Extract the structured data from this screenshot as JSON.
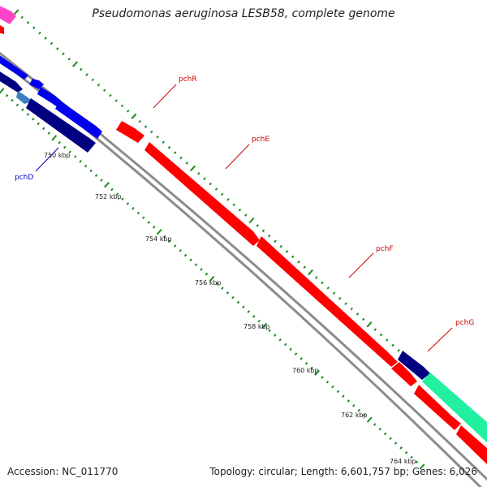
{
  "title": "Pseudomonas aeruginosa LESB58, complete genome",
  "accession": "Accession: NC_011770",
  "summary": "Topology: circular; Length: 6,601,757 bp; Genes: 6,026",
  "colors": {
    "backbone": "#8c8c8c",
    "tick": "#1a8a1a",
    "forward_gene": "#ff0000",
    "reverse_gene": "#0000ee",
    "dark_gene": "#000080",
    "light_gene": "#20f0a0",
    "pink_gene": "#ff44cc",
    "forward_label": "#cc0000",
    "reverse_label": "#0000cc"
  },
  "scale_labels": [
    "750 kbp",
    "752 kbp",
    "754 kbp",
    "756 kbp",
    "758 kbp",
    "760 kbp",
    "762 kbp",
    "764 kbp"
  ],
  "genes": [
    {
      "name": "pchR",
      "strand": "forward"
    },
    {
      "name": "pchE",
      "strand": "forward"
    },
    {
      "name": "pchF",
      "strand": "forward"
    },
    {
      "name": "pchG",
      "strand": "forward"
    },
    {
      "name": "pchD",
      "strand": "reverse"
    }
  ]
}
